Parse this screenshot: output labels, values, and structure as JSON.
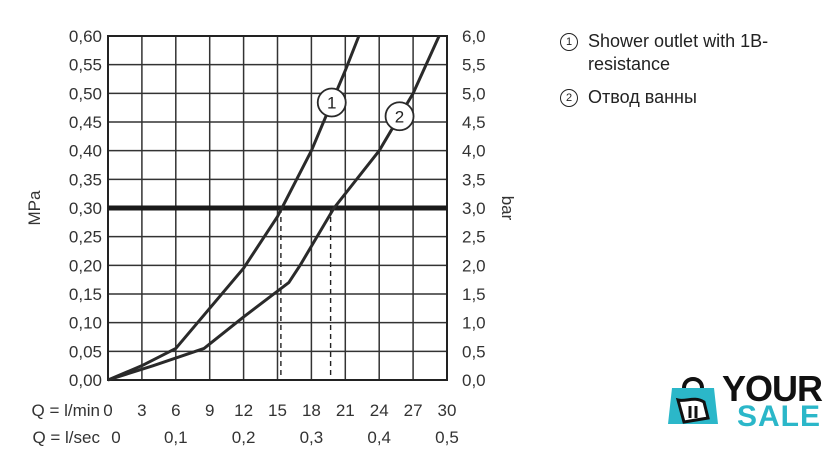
{
  "chart_data": {
    "type": "line",
    "xlabel_rows": [
      {
        "label": "Q = l/min",
        "ticks": [
          "0",
          "3",
          "6",
          "9",
          "12",
          "15",
          "18",
          "21",
          "24",
          "27",
          "30"
        ]
      },
      {
        "label": "Q = l/sec",
        "ticks": [
          "0",
          "0,1",
          "0,2",
          "0,3",
          "0,4",
          "0,5"
        ]
      }
    ],
    "ylabel_left": "MPa",
    "ylabel_right": "bar",
    "yticks_left": [
      "0,00",
      "0,05",
      "0,10",
      "0,15",
      "0,20",
      "0,25",
      "0,30",
      "0,35",
      "0,40",
      "0,45",
      "0,50",
      "0,55",
      "0,60"
    ],
    "yticks_right": [
      "0,0",
      "0,5",
      "1,0",
      "1,5",
      "2,0",
      "2,5",
      "3,0",
      "3,5",
      "4,0",
      "4,5",
      "5,0",
      "5,5",
      "6,0"
    ],
    "xlim": [
      0,
      30
    ],
    "ylim": [
      0,
      0.6
    ],
    "grid": true,
    "reference_line": {
      "y": 0.3
    },
    "drop_lines": [
      {
        "x": 15.3,
        "y": 0.3
      },
      {
        "x": 19.7,
        "y": 0.3
      }
    ],
    "series": [
      {
        "marker": "1",
        "x": [
          0,
          3,
          6,
          9,
          12,
          15,
          18,
          21,
          22.2
        ],
        "y": [
          0,
          0.025,
          0.055,
          0.125,
          0.195,
          0.285,
          0.4,
          0.54,
          0.6
        ]
      },
      {
        "marker": "2",
        "x": [
          0,
          4,
          8.5,
          12,
          16,
          17,
          20,
          24,
          27,
          29.3
        ],
        "y": [
          0,
          0.025,
          0.055,
          0.11,
          0.17,
          0.2,
          0.3,
          0.4,
          0.5,
          0.6
        ]
      }
    ]
  },
  "legend": {
    "items": [
      {
        "num": "1",
        "text": "Shower outlet with 1B-resistance"
      },
      {
        "num": "2",
        "text": "Отвод ванны"
      }
    ]
  },
  "logo": {
    "word1": "YOUR",
    "word2": "SALE",
    "color_accent": "#2bb7c9"
  }
}
